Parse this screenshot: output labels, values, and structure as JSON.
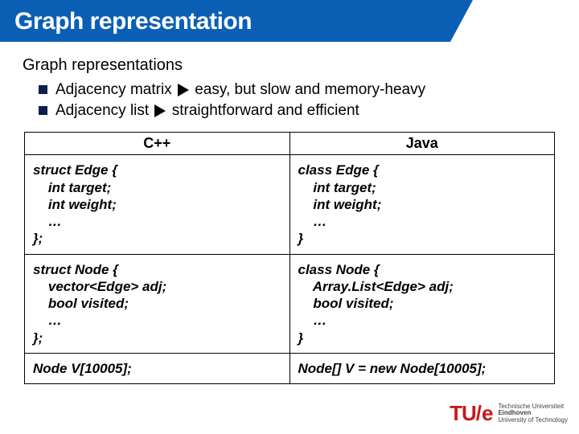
{
  "title": "Graph representation",
  "section_heading": "Graph representations",
  "bullets": [
    {
      "prefix": "Adjacency matrix",
      "suffix": "easy, but slow and memory-heavy"
    },
    {
      "prefix": "Adjacency list",
      "suffix": "straightforward and efficient"
    }
  ],
  "table": {
    "headers": [
      "C++",
      "Java"
    ],
    "rows": [
      {
        "cpp": "struct Edge {\n    int target;\n    int weight;\n    …\n};",
        "java": "class Edge {\n    int target;\n    int weight;\n    …\n}"
      },
      {
        "cpp": "struct Node {\n    vector<Edge> adj;\n    bool visited;\n    …\n};",
        "java": "class Node {\n    Array.List<Edge> adj;\n    bool visited;\n    …\n}"
      },
      {
        "cpp": "Node V[10005];",
        "java": "Node[] V = new Node[10005];"
      }
    ]
  },
  "logo": {
    "mark": "TU",
    "slash": "/e",
    "line1": "Technische Universiteit",
    "line2": "Eindhoven",
    "line3": "University of Technology"
  },
  "colors": {
    "title_bg": "#0a5fb4",
    "bullet_fill": "#0a1f4d",
    "logo_red": "#c81919"
  }
}
